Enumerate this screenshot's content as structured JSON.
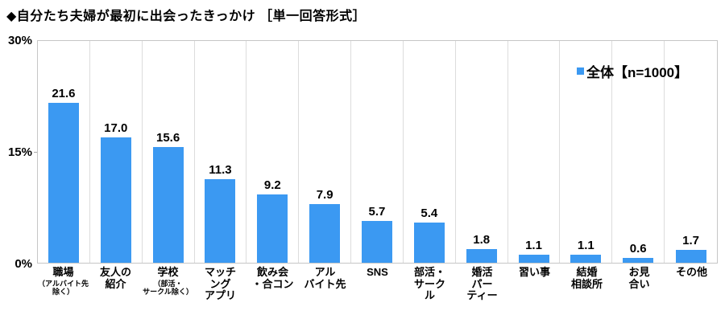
{
  "header": {
    "title": "◆自分たち夫婦が最初に出会ったきっかけ ［単一回答形式］"
  },
  "legend": {
    "label": "全体【n=1000】"
  },
  "colors": {
    "bar": "#3b99f2",
    "grid": "#dcdcdc",
    "border": "#c6c6c6",
    "text": "#000000"
  },
  "y_axis": {
    "tick_labels": [
      "30%",
      "15%",
      "0%"
    ],
    "min": 0,
    "max": 30
  },
  "chart_data": {
    "type": "bar",
    "title": "自分たち夫婦が最初に出会ったきっかけ［単一回答形式］",
    "series_name": "全体",
    "n_label": "n=1000",
    "ylabel": "%",
    "ylim": [
      0,
      30
    ],
    "y_ticks": [
      0,
      15,
      30
    ],
    "grid": "vertical category separators",
    "legend_position": "top-right",
    "categories": [
      {
        "label": "職場",
        "sublabel": "（アルバイト先\n除く）"
      },
      {
        "label": "友人の\n紹介",
        "sublabel": ""
      },
      {
        "label": "学校",
        "sublabel": "（部活・\nサークル除く）"
      },
      {
        "label": "マッチ\nング\nアプリ",
        "sublabel": ""
      },
      {
        "label": "飲み会\n・合コン",
        "sublabel": ""
      },
      {
        "label": "アル\nバイト先",
        "sublabel": ""
      },
      {
        "label": "SNS",
        "sublabel": ""
      },
      {
        "label": "部活・\nサーク\nル",
        "sublabel": ""
      },
      {
        "label": "婚活\nパー\nティー",
        "sublabel": ""
      },
      {
        "label": "習い事",
        "sublabel": ""
      },
      {
        "label": "結婚\n相談所",
        "sublabel": ""
      },
      {
        "label": "お見\n合い",
        "sublabel": ""
      },
      {
        "label": "その他",
        "sublabel": ""
      }
    ],
    "values": [
      21.6,
      17.0,
      15.6,
      11.3,
      9.2,
      7.9,
      5.7,
      5.4,
      1.8,
      1.1,
      1.1,
      0.6,
      1.7
    ]
  }
}
